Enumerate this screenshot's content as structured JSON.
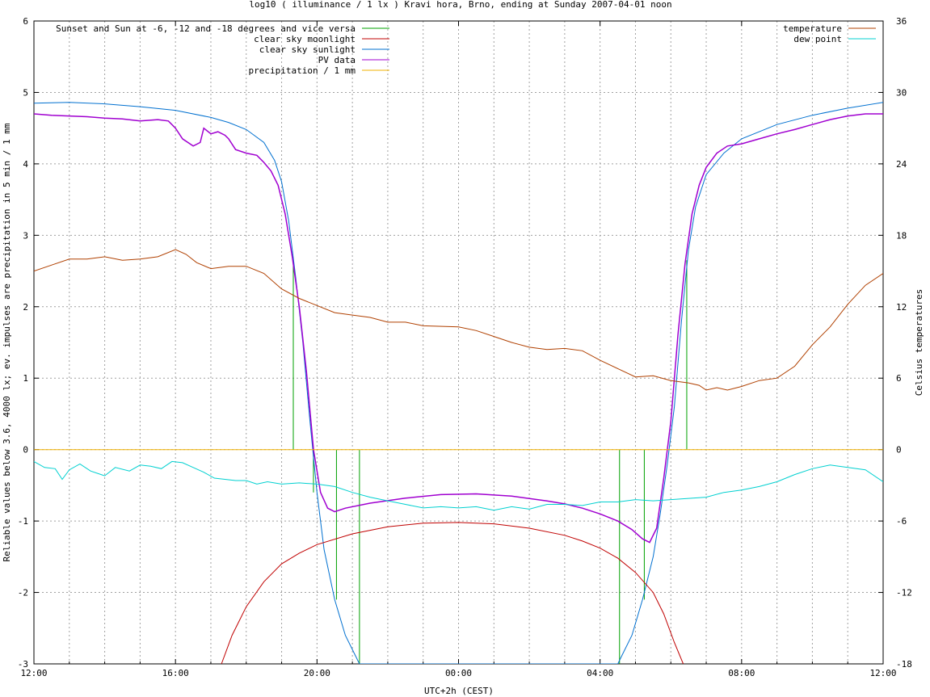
{
  "chart_data": {
    "type": "line",
    "title": "log10 ( illuminance / 1 lx ) Kravi hora, Brno, ending at Sunday 2007-04-01 noon",
    "xlabel": "UTC+2h (CEST)",
    "ylabel": "Reliable values below 3.6, 4000 lx; ev. impulses are precipitation in 5 min / 1 mm",
    "y2label": "Celsius temperatures",
    "xlim": [
      0,
      24
    ],
    "ylim": [
      -3,
      6
    ],
    "y2lim": [
      -18,
      36
    ],
    "x_tick_labels": [
      "12:00",
      "16:00",
      "20:00",
      "00:00",
      "04:00",
      "08:00",
      "12:00"
    ],
    "y_ticks": [
      "-3",
      "-2",
      "-1",
      "0",
      "1",
      "2",
      "3",
      "4",
      "5",
      "6"
    ],
    "y2_ticks": [
      "-18",
      "-12",
      "-6",
      "0",
      "6",
      "12",
      "18",
      "24",
      "30",
      "36"
    ],
    "grid": true,
    "legend_left": [
      {
        "name": "Sunset and Sun at -6, -12 and -18 degrees and vice versa",
        "color": "#00a000"
      },
      {
        "name": "clear sky moonlight",
        "color": "#c00000"
      },
      {
        "name": "clear sky sunlight",
        "color": "#0070d0"
      },
      {
        "name": "PV data",
        "color": "#a000d0"
      },
      {
        "name": "precipitation / 1 mm",
        "color": "#f0b000"
      }
    ],
    "legend_right": [
      {
        "name": "temperature",
        "color": "#b04000"
      },
      {
        "name": "dew point",
        "color": "#00d0d0"
      }
    ],
    "sun_events": [
      {
        "x": 7.33,
        "top": 2.6,
        "bottom": 0
      },
      {
        "x": 7.9,
        "top": 0,
        "bottom": -0.6
      },
      {
        "x": 8.55,
        "top": 0,
        "bottom": -2.1
      },
      {
        "x": 9.2,
        "top": 0,
        "bottom": -3
      },
      {
        "x": 16.55,
        "top": 0,
        "bottom": -3
      },
      {
        "x": 17.25,
        "top": 0,
        "bottom": -2.1
      },
      {
        "x": 18.45,
        "top": 2.65,
        "bottom": 0
      }
    ],
    "series": [
      {
        "name": "clear sky sunlight",
        "color": "#0070d0",
        "axis": "y",
        "points": [
          [
            0,
            4.85
          ],
          [
            1,
            4.86
          ],
          [
            2,
            4.84
          ],
          [
            3,
            4.8
          ],
          [
            4,
            4.75
          ],
          [
            5,
            4.65
          ],
          [
            5.5,
            4.58
          ],
          [
            6,
            4.48
          ],
          [
            6.5,
            4.3
          ],
          [
            6.8,
            4.05
          ],
          [
            7,
            3.75
          ],
          [
            7.2,
            3.2
          ],
          [
            7.4,
            2.4
          ],
          [
            7.6,
            1.5
          ],
          [
            7.8,
            0.4
          ],
          [
            8,
            -0.6
          ],
          [
            8.2,
            -1.4
          ],
          [
            8.5,
            -2.1
          ],
          [
            8.8,
            -2.6
          ],
          [
            9.2,
            -3.0
          ],
          [
            16.5,
            -3.0
          ],
          [
            16.9,
            -2.6
          ],
          [
            17.2,
            -2.1
          ],
          [
            17.5,
            -1.5
          ],
          [
            17.7,
            -0.9
          ],
          [
            17.9,
            -0.2
          ],
          [
            18.1,
            0.6
          ],
          [
            18.3,
            1.8
          ],
          [
            18.5,
            2.8
          ],
          [
            18.7,
            3.4
          ],
          [
            19,
            3.85
          ],
          [
            19.5,
            4.15
          ],
          [
            20,
            4.35
          ],
          [
            21,
            4.55
          ],
          [
            22,
            4.68
          ],
          [
            23,
            4.78
          ],
          [
            24,
            4.86
          ]
        ]
      },
      {
        "name": "clear sky moonlight",
        "color": "#c00000",
        "axis": "y",
        "points": [
          [
            5.3,
            -3.0
          ],
          [
            5.6,
            -2.6
          ],
          [
            6,
            -2.2
          ],
          [
            6.5,
            -1.85
          ],
          [
            7,
            -1.6
          ],
          [
            7.5,
            -1.45
          ],
          [
            8,
            -1.33
          ],
          [
            9,
            -1.18
          ],
          [
            10,
            -1.08
          ],
          [
            11,
            -1.03
          ],
          [
            12,
            -1.02
          ],
          [
            13,
            -1.04
          ],
          [
            14,
            -1.1
          ],
          [
            15,
            -1.2
          ],
          [
            15.5,
            -1.28
          ],
          [
            16,
            -1.38
          ],
          [
            16.5,
            -1.52
          ],
          [
            17,
            -1.72
          ],
          [
            17.5,
            -2.0
          ],
          [
            17.8,
            -2.3
          ],
          [
            18.1,
            -2.7
          ],
          [
            18.35,
            -3.0
          ]
        ]
      },
      {
        "name": "PV data",
        "color": "#a000d0",
        "axis": "y",
        "points": [
          [
            0,
            4.7
          ],
          [
            0.5,
            4.68
          ],
          [
            1,
            4.67
          ],
          [
            1.5,
            4.66
          ],
          [
            2,
            4.64
          ],
          [
            2.5,
            4.63
          ],
          [
            3,
            4.6
          ],
          [
            3.5,
            4.62
          ],
          [
            3.8,
            4.6
          ],
          [
            4,
            4.5
          ],
          [
            4.2,
            4.35
          ],
          [
            4.5,
            4.25
          ],
          [
            4.7,
            4.3
          ],
          [
            4.8,
            4.5
          ],
          [
            5,
            4.42
          ],
          [
            5.2,
            4.45
          ],
          [
            5.4,
            4.4
          ],
          [
            5.5,
            4.35
          ],
          [
            5.7,
            4.2
          ],
          [
            6,
            4.15
          ],
          [
            6.3,
            4.12
          ],
          [
            6.5,
            4.02
          ],
          [
            6.7,
            3.9
          ],
          [
            6.9,
            3.7
          ],
          [
            7.1,
            3.3
          ],
          [
            7.3,
            2.7
          ],
          [
            7.5,
            2.0
          ],
          [
            7.7,
            1.1
          ],
          [
            7.9,
            0.0
          ],
          [
            8.1,
            -0.6
          ],
          [
            8.3,
            -0.82
          ],
          [
            8.5,
            -0.87
          ],
          [
            8.8,
            -0.82
          ],
          [
            9.5,
            -0.75
          ],
          [
            10.5,
            -0.68
          ],
          [
            11.5,
            -0.63
          ],
          [
            12.5,
            -0.62
          ],
          [
            13.5,
            -0.65
          ],
          [
            14.5,
            -0.72
          ],
          [
            15,
            -0.76
          ],
          [
            15.5,
            -0.82
          ],
          [
            16,
            -0.9
          ],
          [
            16.5,
            -1.0
          ],
          [
            16.9,
            -1.12
          ],
          [
            17.2,
            -1.25
          ],
          [
            17.4,
            -1.3
          ],
          [
            17.6,
            -1.1
          ],
          [
            17.8,
            -0.4
          ],
          [
            18,
            0.4
          ],
          [
            18.2,
            1.6
          ],
          [
            18.4,
            2.6
          ],
          [
            18.6,
            3.3
          ],
          [
            18.8,
            3.7
          ],
          [
            19,
            3.95
          ],
          [
            19.3,
            4.15
          ],
          [
            19.6,
            4.25
          ],
          [
            20,
            4.28
          ],
          [
            20.5,
            4.35
          ],
          [
            21,
            4.42
          ],
          [
            21.5,
            4.48
          ],
          [
            22,
            4.55
          ],
          [
            22.5,
            4.62
          ],
          [
            23,
            4.67
          ],
          [
            23.5,
            4.7
          ],
          [
            24,
            4.7
          ]
        ]
      },
      {
        "name": "precipitation / 1 mm",
        "color": "#f0b000",
        "axis": "y",
        "points": [
          [
            0,
            0
          ],
          [
            24,
            0
          ]
        ]
      },
      {
        "name": "temperature",
        "color": "#b04000",
        "axis": "y2",
        "points": [
          [
            0,
            15
          ],
          [
            0.5,
            15.5
          ],
          [
            1,
            16
          ],
          [
            1.5,
            16
          ],
          [
            2,
            16.2
          ],
          [
            2.5,
            15.9
          ],
          [
            3,
            16
          ],
          [
            3.5,
            16.2
          ],
          [
            4,
            16.8
          ],
          [
            4.3,
            16.4
          ],
          [
            4.6,
            15.7
          ],
          [
            5,
            15.2
          ],
          [
            5.5,
            15.4
          ],
          [
            6,
            15.4
          ],
          [
            6.5,
            14.8
          ],
          [
            7,
            13.5
          ],
          [
            7.5,
            12.7
          ],
          [
            8,
            12.1
          ],
          [
            8.5,
            11.5
          ],
          [
            9,
            11.3
          ],
          [
            9.5,
            11.1
          ],
          [
            10,
            10.7
          ],
          [
            10.5,
            10.7
          ],
          [
            11,
            10.4
          ],
          [
            12,
            10.3
          ],
          [
            12.5,
            10.0
          ],
          [
            13,
            9.5
          ],
          [
            13.5,
            9.0
          ],
          [
            14,
            8.6
          ],
          [
            14.5,
            8.4
          ],
          [
            15,
            8.5
          ],
          [
            15.5,
            8.3
          ],
          [
            16,
            7.5
          ],
          [
            16.5,
            6.8
          ],
          [
            17,
            6.1
          ],
          [
            17.5,
            6.2
          ],
          [
            18,
            5.8
          ],
          [
            18.5,
            5.6
          ],
          [
            18.8,
            5.4
          ],
          [
            19,
            5.0
          ],
          [
            19.3,
            5.2
          ],
          [
            19.6,
            5.0
          ],
          [
            20,
            5.3
          ],
          [
            20.5,
            5.8
          ],
          [
            21,
            6.0
          ],
          [
            21.5,
            7.0
          ],
          [
            22,
            8.8
          ],
          [
            22.5,
            10.3
          ],
          [
            23,
            12.2
          ],
          [
            23.5,
            13.8
          ],
          [
            24,
            14.8
          ]
        ]
      },
      {
        "name": "dew point",
        "color": "#00d0d0",
        "axis": "y2",
        "points": [
          [
            0,
            -1.0
          ],
          [
            0.3,
            -1.5
          ],
          [
            0.6,
            -1.6
          ],
          [
            0.8,
            -2.5
          ],
          [
            1,
            -1.7
          ],
          [
            1.3,
            -1.2
          ],
          [
            1.6,
            -1.8
          ],
          [
            2,
            -2.2
          ],
          [
            2.3,
            -1.5
          ],
          [
            2.7,
            -1.8
          ],
          [
            3,
            -1.3
          ],
          [
            3.3,
            -1.4
          ],
          [
            3.6,
            -1.6
          ],
          [
            3.9,
            -1.0
          ],
          [
            4.2,
            -1.1
          ],
          [
            4.5,
            -1.5
          ],
          [
            4.8,
            -1.9
          ],
          [
            5.1,
            -2.4
          ],
          [
            5.4,
            -2.5
          ],
          [
            5.7,
            -2.6
          ],
          [
            6,
            -2.6
          ],
          [
            6.3,
            -2.9
          ],
          [
            6.6,
            -2.7
          ],
          [
            7,
            -2.9
          ],
          [
            7.5,
            -2.8
          ],
          [
            8,
            -2.9
          ],
          [
            8.5,
            -3.1
          ],
          [
            9,
            -3.6
          ],
          [
            9.5,
            -4.0
          ],
          [
            10,
            -4.3
          ],
          [
            10.5,
            -4.6
          ],
          [
            11,
            -4.9
          ],
          [
            11.5,
            -4.8
          ],
          [
            12,
            -4.9
          ],
          [
            12.5,
            -4.8
          ],
          [
            13,
            -5.1
          ],
          [
            13.5,
            -4.8
          ],
          [
            14,
            -5.0
          ],
          [
            14.5,
            -4.6
          ],
          [
            15,
            -4.6
          ],
          [
            15.5,
            -4.7
          ],
          [
            16,
            -4.4
          ],
          [
            16.5,
            -4.4
          ],
          [
            17,
            -4.2
          ],
          [
            17.5,
            -4.3
          ],
          [
            18,
            -4.2
          ],
          [
            18.5,
            -4.1
          ],
          [
            19,
            -4.0
          ],
          [
            19.5,
            -3.6
          ],
          [
            20,
            -3.4
          ],
          [
            20.5,
            -3.1
          ],
          [
            21,
            -2.7
          ],
          [
            21.5,
            -2.1
          ],
          [
            22,
            -1.6
          ],
          [
            22.5,
            -1.3
          ],
          [
            23,
            -1.5
          ],
          [
            23.5,
            -1.7
          ],
          [
            24,
            -2.7
          ]
        ]
      }
    ]
  }
}
